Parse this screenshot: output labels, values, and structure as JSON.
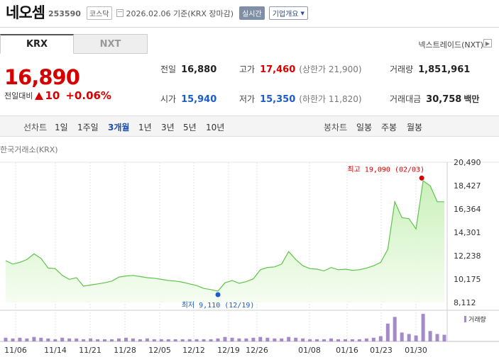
{
  "header": {
    "stock_name": "네오셈",
    "stock_code": "253590",
    "market": "코스닥",
    "date_text": "2026.02.06  기준(KRX 장마감)",
    "realtime_label": "실시간",
    "company_button": "기업개요",
    "date_icon": "calendar-icon"
  },
  "exchange_tabs": [
    {
      "label": "KRX",
      "active": true
    },
    {
      "label": "NXT",
      "active": false
    }
  ],
  "nxt_link": "넥스트레이드(NXT)",
  "price": {
    "current": "16,890",
    "change_label": "전일대비",
    "change_amount": "10",
    "change_percent": "+0.06%",
    "direction": "up",
    "up_color": "#d60000",
    "down_color": "#1a5cc8"
  },
  "quotes": {
    "prev_close": {
      "label": "전일",
      "value": "16,880"
    },
    "high": {
      "label": "고가",
      "value": "17,460",
      "sub": "(상한가 21,900)"
    },
    "volume": {
      "label": "거래량",
      "value": "1,851,961"
    },
    "open": {
      "label": "시가",
      "value": "15,940"
    },
    "low": {
      "label": "저가",
      "value": "15,350",
      "sub": "(하한가 11,820)"
    },
    "amount": {
      "label": "거래대금",
      "value": "30,758",
      "unit": "백만"
    }
  },
  "toolbar": {
    "line_label": "선차트",
    "periods": [
      "1일",
      "1주일",
      "3개월",
      "1년",
      "3년",
      "5년",
      "10년"
    ],
    "active_period": "3개월",
    "candle_label": "봉차트",
    "candle_periods": [
      "일봉",
      "주봉",
      "월봉"
    ]
  },
  "chart_source": "한국거래소(KRX)",
  "chart_data": {
    "type": "area",
    "title": "",
    "xlabel": "",
    "ylabel": "",
    "x_ticks": [
      "11/06",
      "11/14",
      "11/21",
      "11/28",
      "12/05",
      "12/12",
      "12/19",
      "12/26",
      "01/08",
      "01/16",
      "01/23",
      "01/30"
    ],
    "y_ticks": [
      "20,490",
      "18,427",
      "16,364",
      "14,301",
      "12,238",
      "10,175",
      "8,112"
    ],
    "ylim": [
      8112,
      20490
    ],
    "price_series": [
      11800,
      11500,
      11650,
      11900,
      12400,
      12000,
      11150,
      11100,
      10500,
      10150,
      10300,
      9550,
      9650,
      9750,
      9850,
      10000,
      10350,
      10450,
      10500,
      10400,
      10300,
      10250,
      10150,
      10050,
      10000,
      9900,
      9750,
      9600,
      9350,
      9250,
      9110,
      9850,
      10050,
      9800,
      9950,
      10200,
      11000,
      11200,
      11250,
      11500,
      12600,
      11900,
      11350,
      11100,
      11050,
      10900,
      11200,
      11000,
      11050,
      10950,
      11000,
      11150,
      11350,
      11650,
      12800,
      17000,
      15600,
      15500,
      14600,
      18850,
      18400,
      17000,
      17000
    ],
    "volume_series": [
      5,
      4,
      5,
      4,
      6,
      5,
      4,
      3,
      5,
      4,
      4,
      3,
      4,
      3,
      3,
      3,
      4,
      5,
      4,
      3,
      4,
      3,
      3,
      3,
      3,
      3,
      3,
      3,
      3,
      3,
      4,
      6,
      5,
      4,
      4,
      5,
      6,
      5,
      4,
      4,
      6,
      5,
      4,
      3,
      3,
      3,
      4,
      3,
      3,
      3,
      3,
      4,
      5,
      7,
      24,
      33,
      12,
      10,
      8,
      37,
      14,
      10,
      9
    ],
    "volume_max": 40,
    "high_label": "최고 19,090 (02/03)",
    "low_label": "최저 9,110 (12/19)",
    "high_value": 19090,
    "low_value": 9110,
    "legend": "거래량",
    "line_color": "#5fc44a",
    "fill_color": "#d6f5c9",
    "volume_color": "#a58ac9",
    "high_color": "#d60000",
    "low_color": "#1a5cc8"
  }
}
